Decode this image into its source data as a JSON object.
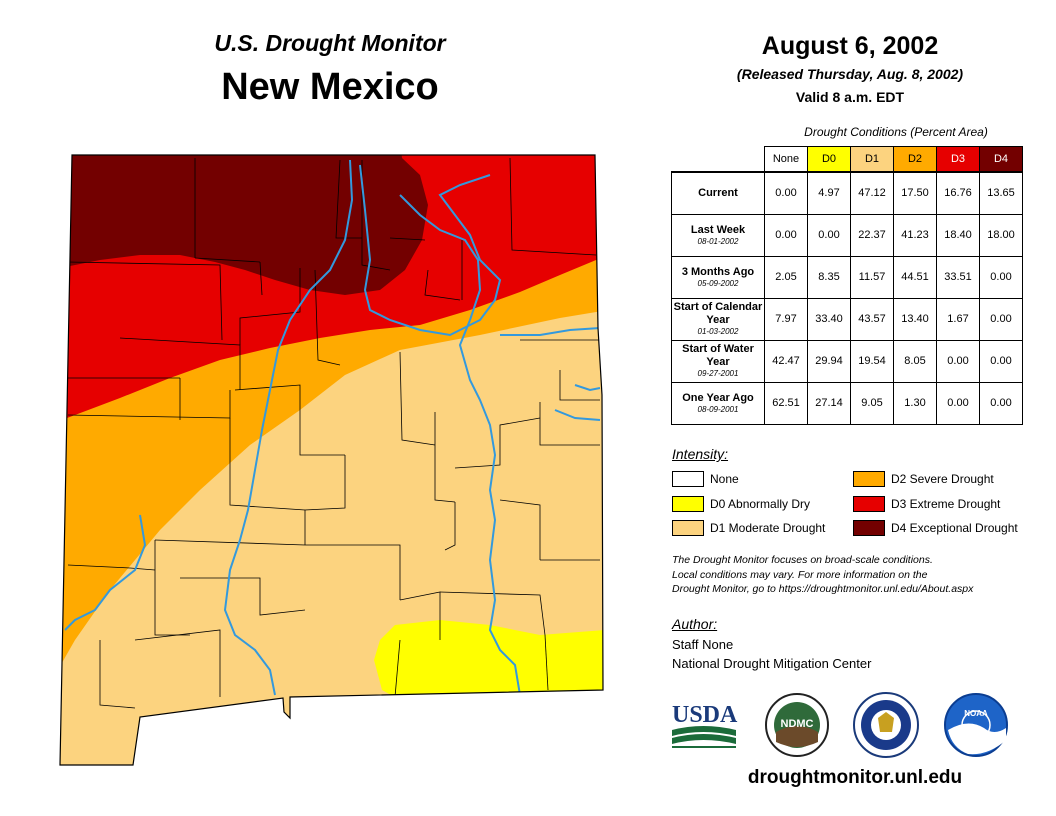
{
  "header": {
    "subtitle": "U.S. Drought Monitor",
    "state": "New Mexico"
  },
  "date_block": {
    "date": "August 6, 2002",
    "released": "(Released Thursday, Aug. 8, 2002)",
    "valid": "Valid 8 a.m. EDT"
  },
  "conditions": {
    "caption": "Drought Conditions (Percent Area)",
    "columns": [
      {
        "label": "None",
        "color": "#ffffff",
        "text_color": "#000000"
      },
      {
        "label": "D0",
        "color": "#ffff00",
        "text_color": "#000000"
      },
      {
        "label": "D1",
        "color": "#fcd37f",
        "text_color": "#000000"
      },
      {
        "label": "D2",
        "color": "#ffaa00",
        "text_color": "#000000"
      },
      {
        "label": "D3",
        "color": "#e60000",
        "text_color": "#ffffff"
      },
      {
        "label": "D4",
        "color": "#730000",
        "text_color": "#ffffff"
      }
    ],
    "rows": [
      {
        "label": "Current",
        "date": "",
        "values": [
          "0.00",
          "4.97",
          "47.12",
          "17.50",
          "16.76",
          "13.65"
        ]
      },
      {
        "label": "Last Week",
        "date": "08-01-2002",
        "values": [
          "0.00",
          "0.00",
          "22.37",
          "41.23",
          "18.40",
          "18.00"
        ]
      },
      {
        "label": "3 Months Ago",
        "date": "05-09-2002",
        "values": [
          "2.05",
          "8.35",
          "11.57",
          "44.51",
          "33.51",
          "0.00"
        ]
      },
      {
        "label": "Start of Calendar Year",
        "date": "01-03-2002",
        "values": [
          "7.97",
          "33.40",
          "43.57",
          "13.40",
          "1.67",
          "0.00"
        ]
      },
      {
        "label": "Start of Water Year",
        "date": "09-27-2001",
        "values": [
          "42.47",
          "29.94",
          "19.54",
          "8.05",
          "0.00",
          "0.00"
        ]
      },
      {
        "label": "One Year Ago",
        "date": "08-09-2001",
        "values": [
          "62.51",
          "27.14",
          "9.05",
          "1.30",
          "0.00",
          "0.00"
        ]
      }
    ]
  },
  "legend": {
    "title": "Intensity:",
    "items": [
      {
        "label": "None",
        "color": "#ffffff"
      },
      {
        "label": "D0 Abnormally Dry",
        "color": "#ffff00"
      },
      {
        "label": "D1 Moderate Drought",
        "color": "#fcd37f"
      },
      {
        "label": "D2 Severe Drought",
        "color": "#ffaa00"
      },
      {
        "label": "D3 Extreme Drought",
        "color": "#e60000"
      },
      {
        "label": "D4 Exceptional Drought",
        "color": "#730000"
      }
    ]
  },
  "note": {
    "line1": "The Drought Monitor focuses on broad-scale conditions.",
    "line2": "Local conditions may vary. For more information on the",
    "line3": "Drought Monitor, go to https://droughtmonitor.unl.edu/About.aspx"
  },
  "author": {
    "title": "Author:",
    "name": "Staff None",
    "org": "National Drought Mitigation Center"
  },
  "logos": {
    "usda": "USDA",
    "ndmc": "NDMC",
    "noaa": "NOAA"
  },
  "website": "droughtmonitor.unl.edu",
  "map_colors": {
    "d0": "#ffff00",
    "d1": "#fcd37f",
    "d2": "#ffaa00",
    "d3": "#e60000",
    "d4": "#730000",
    "river": "#3399dd",
    "county": "#000000"
  }
}
